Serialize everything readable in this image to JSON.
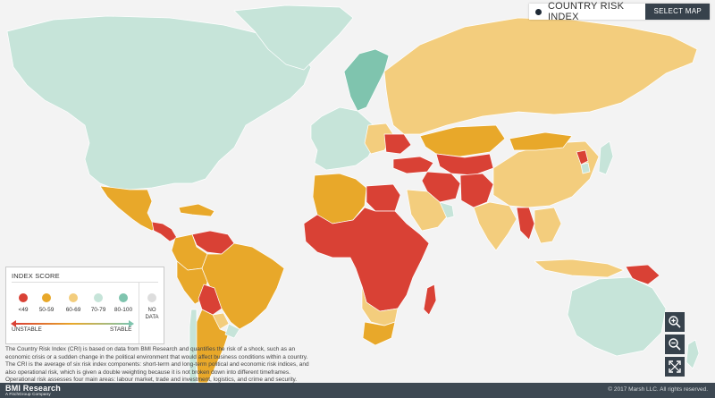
{
  "map_selector": {
    "label": "COUNTRY RISK INDEX",
    "button": "SELECT MAP"
  },
  "legend": {
    "title": "INDEX SCORE",
    "categories": [
      {
        "label": "<49",
        "color": "#d94135"
      },
      {
        "label": "50-59",
        "color": "#e8a82a"
      },
      {
        "label": "60-69",
        "color": "#f3cd7d"
      },
      {
        "label": "70-79",
        "color": "#c6e4d9"
      },
      {
        "label": "80-100",
        "color": "#7fc4ae"
      }
    ],
    "no_data": {
      "label": "NO DATA",
      "color": "#dddddd"
    },
    "unstable": "UNSTABLE",
    "stable": "STABLE"
  },
  "description": "The Country Risk Index (CRI) is based on data from BMI Research and quantifies the risk of a shock, such as an economic crisis or a sudden change in the political environment that would affect business conditions within a country. The CRI is the average of six risk index components: short-term and long-term political and economic risk indices, and also operational risk, which is given a double weighting because it is not broken down into different timeframes. Operational risk assesses four main areas: labour market, trade and investment, logistics, and crime and security.",
  "zoom": {
    "in": "zoom-in",
    "out": "zoom-out",
    "full": "fullscreen"
  },
  "footer": {
    "logo": "BMI Research",
    "logo_sub": "A FitchGroup Company",
    "copyright": "© 2017 Marsh LLC. All rights reserved."
  },
  "colors": {
    "ocean": "#f3f3f3",
    "border": "#ffffff"
  },
  "regions": [
    {
      "name": "north-america",
      "level": 3
    },
    {
      "name": "greenland",
      "level": 3
    },
    {
      "name": "mexico",
      "level": 1
    },
    {
      "name": "central-america",
      "level": 0
    },
    {
      "name": "caribbean",
      "level": 1
    },
    {
      "name": "venezuela",
      "level": 0
    },
    {
      "name": "colombia",
      "level": 1
    },
    {
      "name": "brazil",
      "level": 1
    },
    {
      "name": "peru",
      "level": 1
    },
    {
      "name": "bolivia",
      "level": 0
    },
    {
      "name": "argentina",
      "level": 1
    },
    {
      "name": "chile",
      "level": 3
    },
    {
      "name": "uruguay",
      "level": 3
    },
    {
      "name": "paraguay",
      "level": 2
    },
    {
      "name": "europe-west",
      "level": 3
    },
    {
      "name": "scandinavia",
      "level": 4
    },
    {
      "name": "eastern-europe",
      "level": 2
    },
    {
      "name": "ukraine",
      "level": 0
    },
    {
      "name": "russia",
      "level": 2
    },
    {
      "name": "kazakhstan",
      "level": 1
    },
    {
      "name": "central-asia",
      "level": 0
    },
    {
      "name": "turkey",
      "level": 0
    },
    {
      "name": "iran",
      "level": 0
    },
    {
      "name": "saudi-arabia",
      "level": 2
    },
    {
      "name": "gulf-states",
      "level": 3
    },
    {
      "name": "north-africa-west",
      "level": 1
    },
    {
      "name": "egypt",
      "level": 0
    },
    {
      "name": "sub-saharan-africa",
      "level": 0
    },
    {
      "name": "southern-africa",
      "level": 2
    },
    {
      "name": "south-africa",
      "level": 1
    },
    {
      "name": "madagascar",
      "level": 0
    },
    {
      "name": "india",
      "level": 2
    },
    {
      "name": "pakistan-afghanistan",
      "level": 0
    },
    {
      "name": "china",
      "level": 2
    },
    {
      "name": "mongolia",
      "level": 1
    },
    {
      "name": "north-korea",
      "level": 0
    },
    {
      "name": "korea-japan",
      "level": 3
    },
    {
      "name": "myanmar",
      "level": 0
    },
    {
      "name": "se-asia",
      "level": 2
    },
    {
      "name": "indonesia",
      "level": 2
    },
    {
      "name": "papua-new-guinea",
      "level": 0
    },
    {
      "name": "australia",
      "level": 3
    },
    {
      "name": "new-zealand",
      "level": 3
    }
  ]
}
